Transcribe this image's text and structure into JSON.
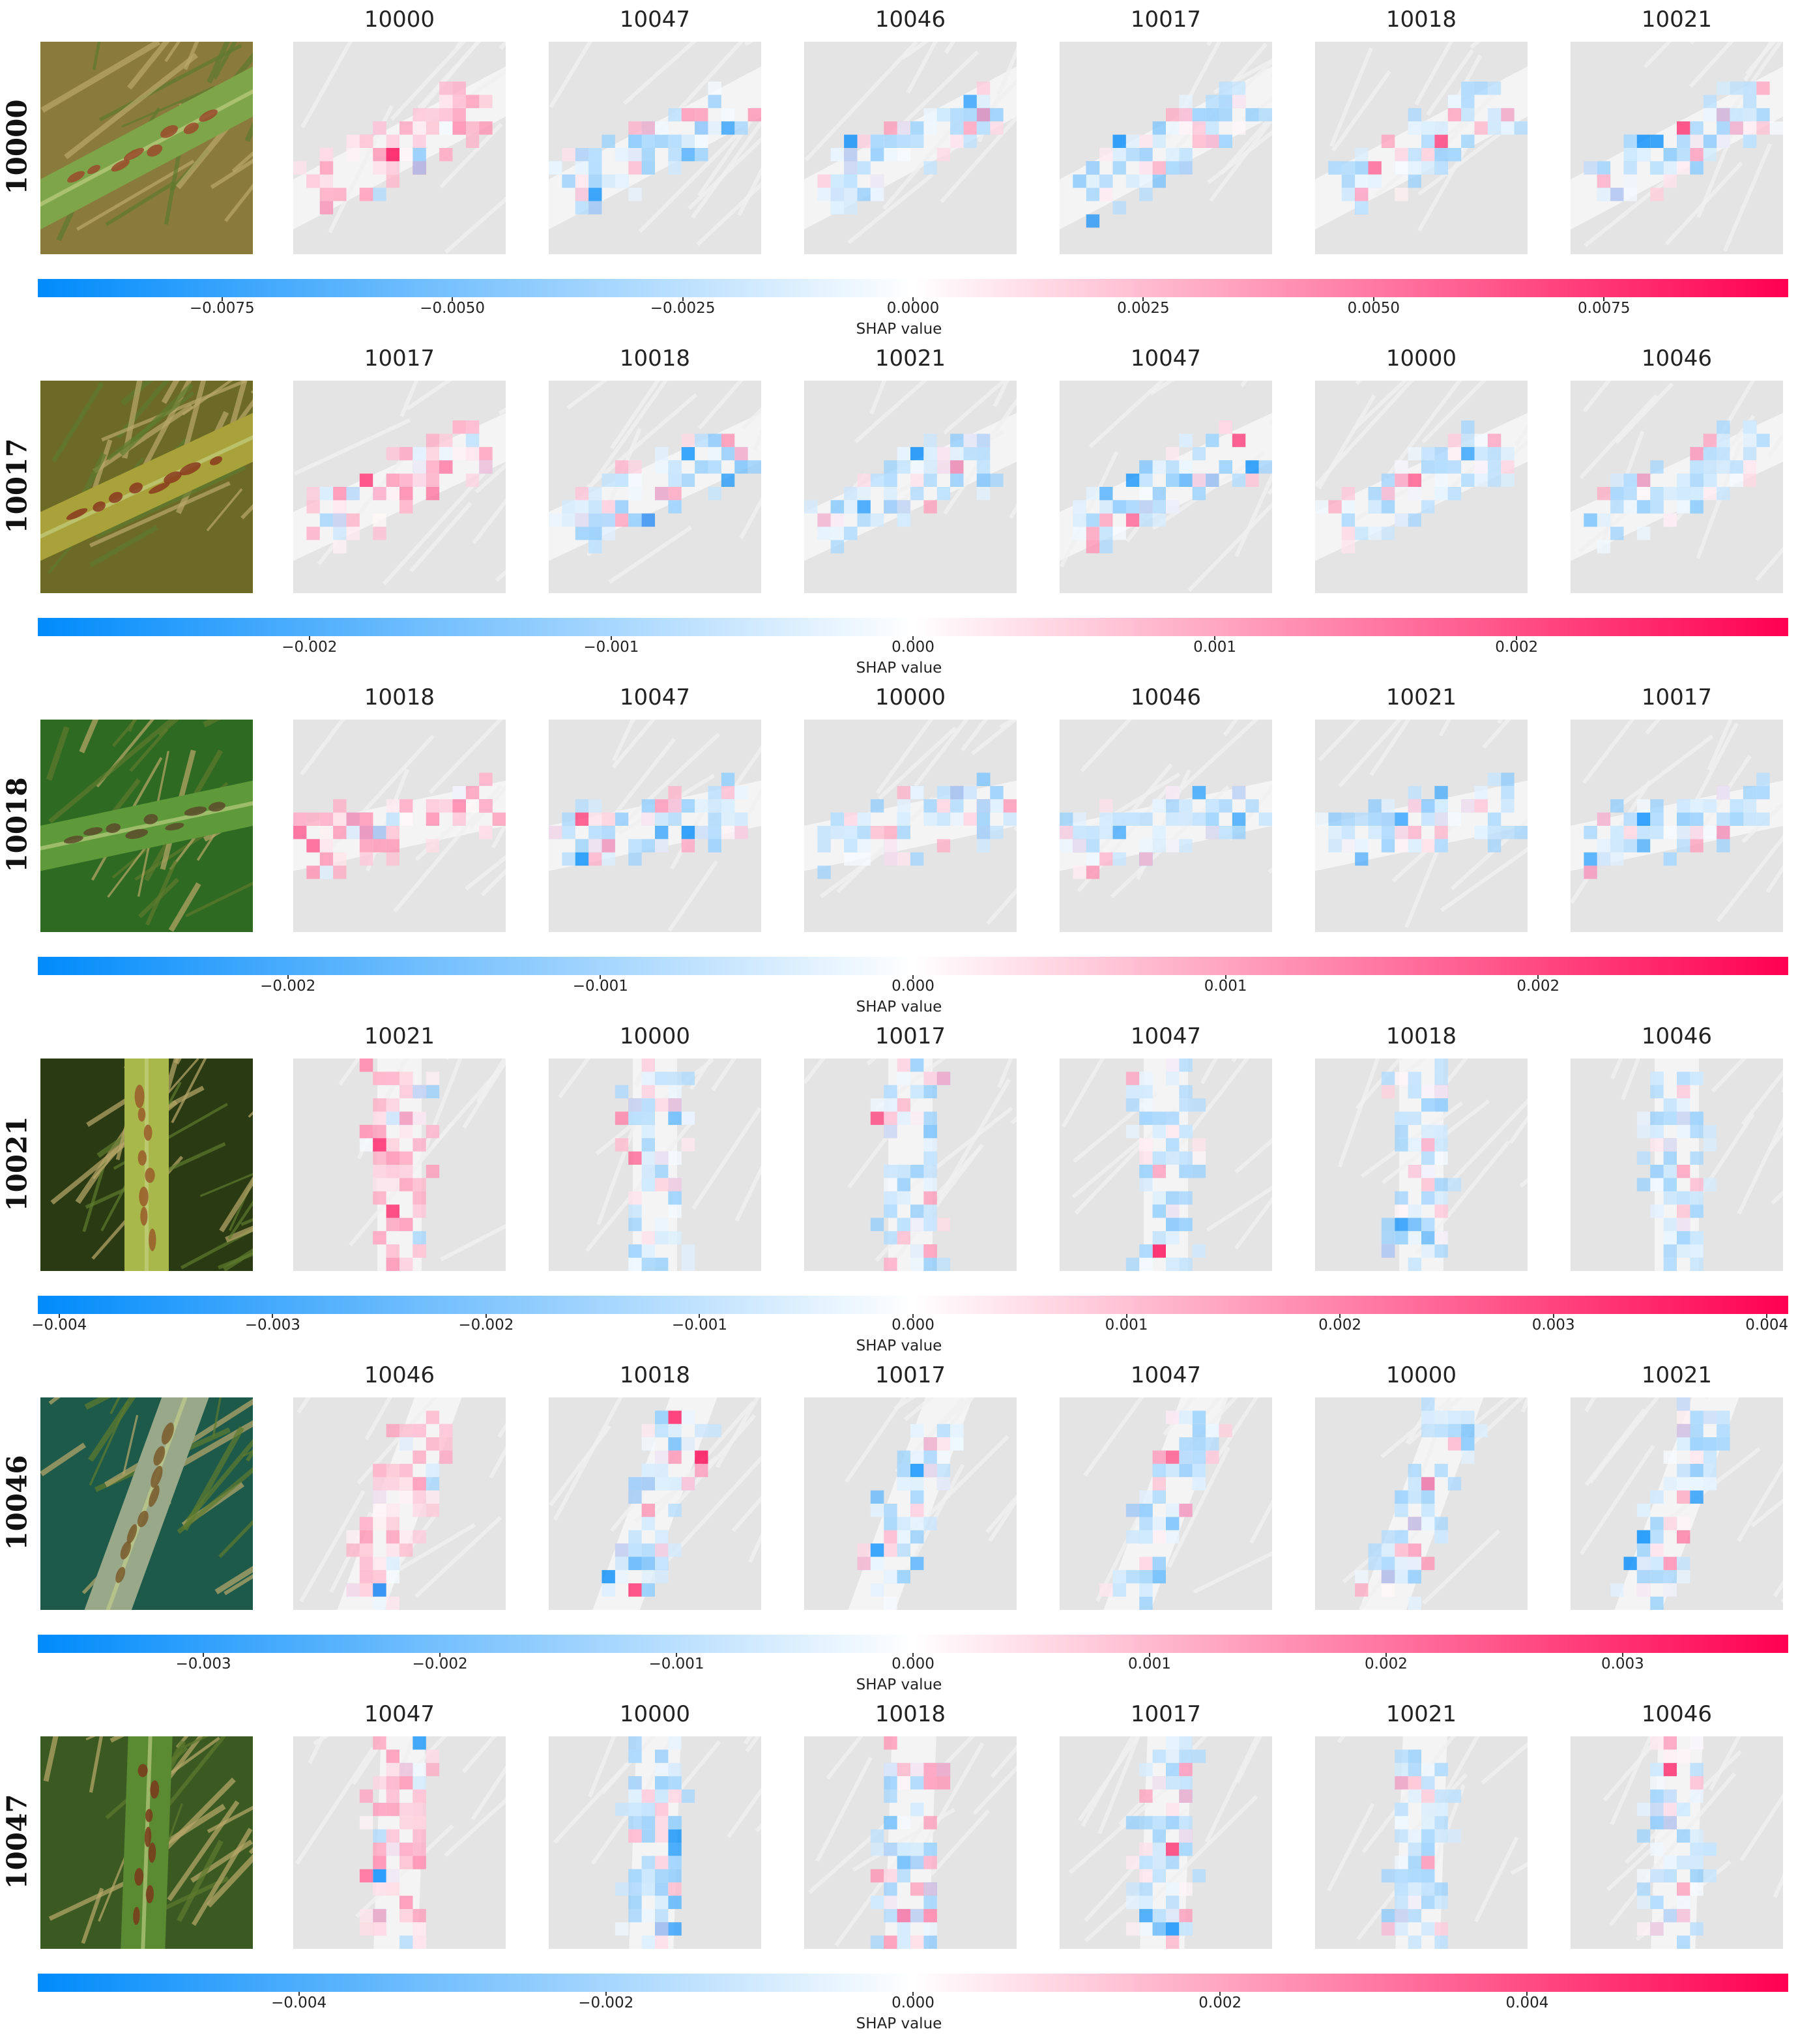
{
  "chart_data": {
    "type": "heatmap",
    "colormap": {
      "negative": "#008bfb",
      "zero": "#ffffff",
      "positive": "#ff0051"
    },
    "colorbar_label": "SHAP value",
    "rows": [
      {
        "label": "10000",
        "photo": "leaf with brown spots",
        "panels": [
          "10000",
          "10047",
          "10046",
          "10017",
          "10018",
          "10021"
        ],
        "colorbar_ticks": [
          "−0.0075",
          "−0.0050",
          "−0.0025",
          "0.0000",
          "0.0025",
          "0.0050",
          "0.0075"
        ],
        "colorbar_range": [
          -0.0095,
          0.0095
        ]
      },
      {
        "label": "10017",
        "photo": "leaf with brown lesion",
        "panels": [
          "10017",
          "10018",
          "10021",
          "10047",
          "10000",
          "10046"
        ],
        "colorbar_ticks": [
          "−0.002",
          "−0.001",
          "0.000",
          "0.001",
          "0.002"
        ],
        "colorbar_range": [
          -0.0029,
          0.0029
        ]
      },
      {
        "label": "10018",
        "photo": "leaf sheath lesion",
        "panels": [
          "10018",
          "10047",
          "10000",
          "10046",
          "10021",
          "10017"
        ],
        "colorbar_ticks": [
          "−0.002",
          "−0.001",
          "0.000",
          "0.001",
          "0.002"
        ],
        "colorbar_range": [
          -0.0028,
          0.0028
        ]
      },
      {
        "label": "10021",
        "photo": "vertical leaf",
        "panels": [
          "10021",
          "10000",
          "10017",
          "10047",
          "10018",
          "10046"
        ],
        "colorbar_ticks": [
          "−0.004",
          "−0.003",
          "−0.002",
          "−0.001",
          "0.000",
          "0.001",
          "0.002",
          "0.003",
          "0.004"
        ],
        "colorbar_range": [
          -0.0041,
          0.0041
        ]
      },
      {
        "label": "10046",
        "photo": "panicle on dark background",
        "panels": [
          "10046",
          "10018",
          "10017",
          "10047",
          "10000",
          "10021"
        ],
        "colorbar_ticks": [
          "−0.003",
          "−0.002",
          "−0.001",
          "0.000",
          "0.001",
          "0.002",
          "0.003"
        ],
        "colorbar_range": [
          -0.0037,
          0.0037
        ]
      },
      {
        "label": "10047",
        "photo": "leaf with streak lesions",
        "panels": [
          "10047",
          "10000",
          "10018",
          "10017",
          "10021",
          "10046"
        ],
        "colorbar_ticks": [
          "−0.004",
          "−0.002",
          "0.000",
          "0.002",
          "0.004"
        ],
        "colorbar_range": [
          -0.0057,
          0.0057
        ]
      }
    ]
  }
}
